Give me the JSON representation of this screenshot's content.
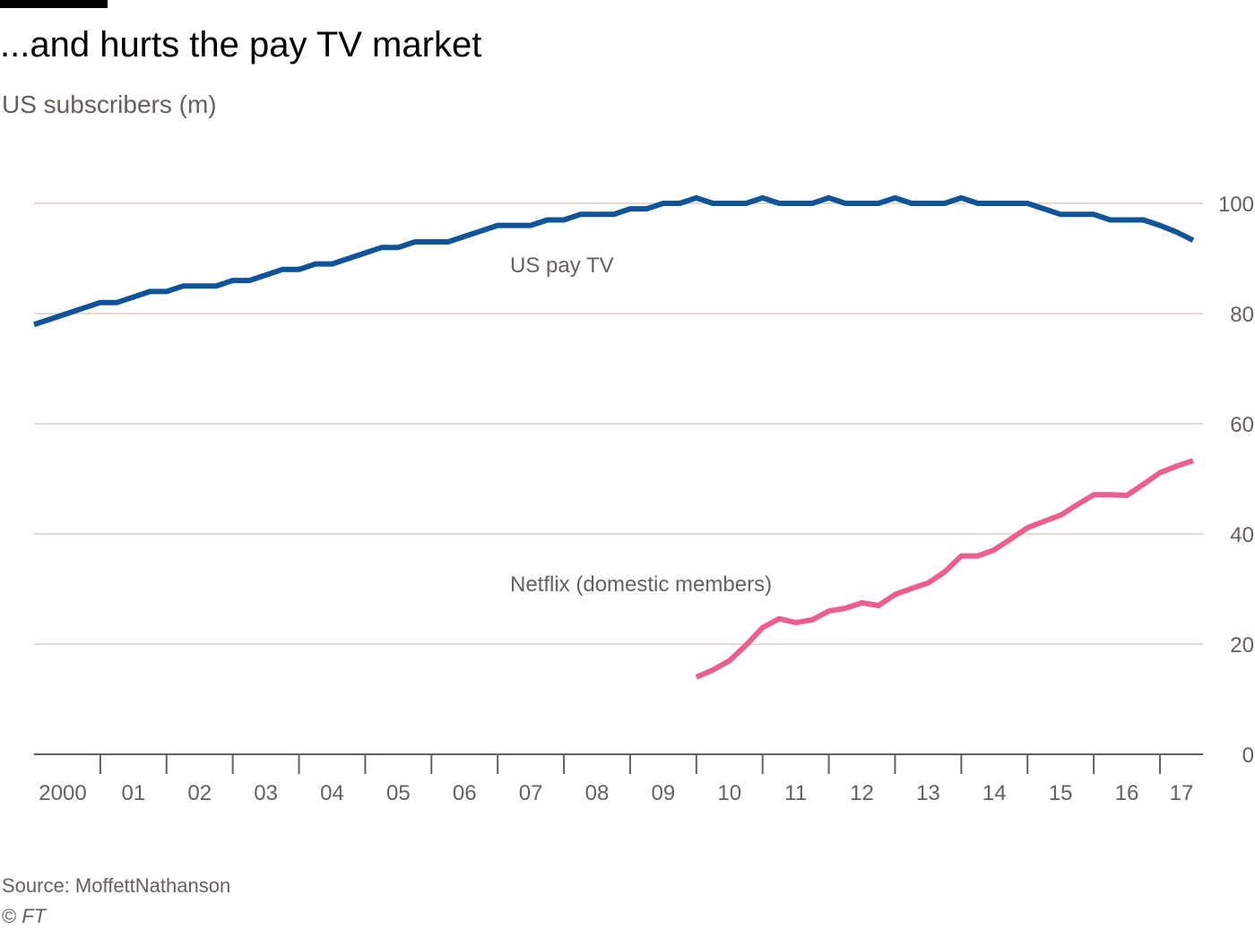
{
  "header": {
    "title": "...and hurts the pay TV market",
    "subtitle": "US subscribers (m)"
  },
  "footer": {
    "source": "Source: MoffettNathanson",
    "copyright_symbol": "©",
    "copyright_org": "FT"
  },
  "colors": {
    "pay_tv": "#0f5499",
    "netflix": "#eb5e8d",
    "grid": "#e6d9ce",
    "axis": "#66605c",
    "top_bar": "#000000"
  },
  "chart_data": {
    "type": "line",
    "title": "...and hurts the pay TV market",
    "ylabel": "US subscribers (m)",
    "xlim": [
      2000,
      2017.65
    ],
    "ylim": [
      0,
      100
    ],
    "y_ticks": [
      0,
      20,
      40,
      60,
      80,
      100
    ],
    "y_tick_labels": [
      "0",
      "20",
      "40",
      "60",
      "80",
      "100"
    ],
    "y_axis_side": "right",
    "x_tick_labels": [
      "2000",
      "01",
      "02",
      "03",
      "04",
      "05",
      "06",
      "07",
      "08",
      "09",
      "10",
      "11",
      "12",
      "13",
      "14",
      "15",
      "16",
      "17"
    ],
    "grid": true,
    "series": [
      {
        "name": "US pay TV",
        "x": [
          2000.0,
          2000.25,
          2000.5,
          2000.75,
          2001.0,
          2001.25,
          2001.5,
          2001.75,
          2002.0,
          2002.25,
          2002.5,
          2002.75,
          2003.0,
          2003.25,
          2003.5,
          2003.75,
          2004.0,
          2004.25,
          2004.5,
          2004.75,
          2005.0,
          2005.25,
          2005.5,
          2005.75,
          2006.0,
          2006.25,
          2006.5,
          2006.75,
          2007.0,
          2007.25,
          2007.5,
          2007.75,
          2008.0,
          2008.25,
          2008.5,
          2008.75,
          2009.0,
          2009.25,
          2009.5,
          2009.75,
          2010.0,
          2010.25,
          2010.5,
          2010.75,
          2011.0,
          2011.25,
          2011.5,
          2011.75,
          2012.0,
          2012.25,
          2012.5,
          2012.75,
          2013.0,
          2013.25,
          2013.5,
          2013.75,
          2014.0,
          2014.25,
          2014.5,
          2014.75,
          2015.0,
          2015.25,
          2015.5,
          2015.75,
          2016.0,
          2016.25,
          2016.5,
          2016.75,
          2017.0,
          2017.25,
          2017.5
        ],
        "values": [
          78,
          79,
          80,
          81,
          82,
          82,
          83,
          84,
          84,
          85,
          85,
          85,
          86,
          86,
          87,
          88,
          88,
          89,
          89,
          90,
          91,
          92,
          92,
          93,
          93,
          93,
          94,
          95,
          96,
          96,
          96,
          97,
          97,
          98,
          98,
          98,
          99,
          99,
          100,
          100,
          101,
          100,
          100,
          100,
          101,
          100,
          100,
          100,
          101,
          100,
          100,
          100,
          101,
          100,
          100,
          100,
          101,
          100,
          100,
          100,
          100,
          99,
          98,
          98,
          98,
          97,
          97,
          97,
          96,
          94.8,
          93.3
        ]
      },
      {
        "name": "Netflix (domestic members)",
        "x": [
          2010.0,
          2010.25,
          2010.5,
          2010.75,
          2011.0,
          2011.25,
          2011.5,
          2011.75,
          2012.0,
          2012.25,
          2012.5,
          2012.75,
          2013.0,
          2013.25,
          2013.5,
          2013.75,
          2014.0,
          2014.25,
          2014.5,
          2014.75,
          2015.0,
          2015.25,
          2015.5,
          2015.75,
          2016.0,
          2016.25,
          2016.5,
          2016.75,
          2017.0,
          2017.25,
          2017.5
        ],
        "values": [
          14,
          15.3,
          17,
          19.8,
          23,
          24.6,
          23.9,
          24.4,
          26,
          26.5,
          27.5,
          27,
          29,
          30.1,
          31.1,
          33.1,
          36,
          36,
          37.1,
          39.1,
          41.1,
          42.3,
          43.4,
          45.3,
          47.1,
          47.1,
          47,
          49,
          51.1,
          52.3,
          53.3
        ]
      }
    ],
    "annotations": [
      "US pay TV",
      "Netflix (domestic members)"
    ]
  }
}
